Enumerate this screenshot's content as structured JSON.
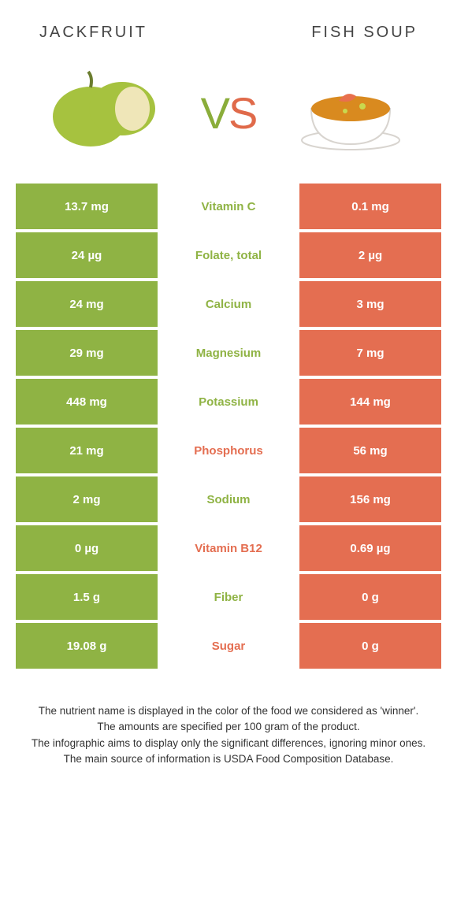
{
  "header": {
    "left": "Jackfruit",
    "right": "Fish soup"
  },
  "vs": {
    "v": "V",
    "s": "S"
  },
  "colors": {
    "left_bg": "#8fb344",
    "right_bg": "#e46e51",
    "left_text_winner": "#8fb344",
    "right_text_winner": "#e46e51"
  },
  "rows": [
    {
      "nutrient": "Vitamin C",
      "left": "13.7 mg",
      "right": "0.1 mg",
      "winner": "left"
    },
    {
      "nutrient": "Folate, total",
      "left": "24 µg",
      "right": "2 µg",
      "winner": "left"
    },
    {
      "nutrient": "Calcium",
      "left": "24 mg",
      "right": "3 mg",
      "winner": "left"
    },
    {
      "nutrient": "Magnesium",
      "left": "29 mg",
      "right": "7 mg",
      "winner": "left"
    },
    {
      "nutrient": "Potassium",
      "left": "448 mg",
      "right": "144 mg",
      "winner": "left"
    },
    {
      "nutrient": "Phosphorus",
      "left": "21 mg",
      "right": "56 mg",
      "winner": "right"
    },
    {
      "nutrient": "Sodium",
      "left": "2 mg",
      "right": "156 mg",
      "winner": "left"
    },
    {
      "nutrient": "Vitamin B12",
      "left": "0 µg",
      "right": "0.69 µg",
      "winner": "right"
    },
    {
      "nutrient": "Fiber",
      "left": "1.5 g",
      "right": "0 g",
      "winner": "left"
    },
    {
      "nutrient": "Sugar",
      "left": "19.08 g",
      "right": "0 g",
      "winner": "right"
    }
  ],
  "footer": {
    "line1": "The nutrient name is displayed in the color of the food we considered as 'winner'.",
    "line2": "The amounts are specified per 100 gram of the product.",
    "line3": "The infographic aims to display only the significant differences, ignoring minor ones.",
    "line4": "The main source of information is USDA Food Composition Database."
  }
}
